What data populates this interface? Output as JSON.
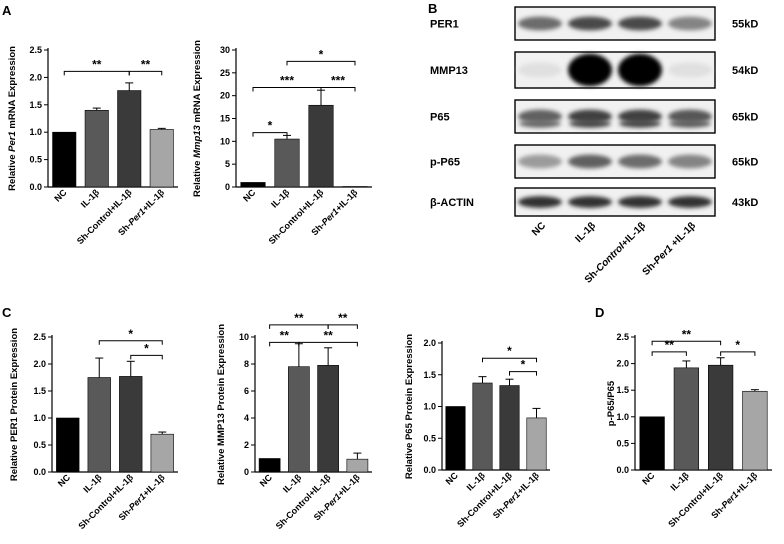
{
  "panel_letters": [
    "A",
    "B",
    "C",
    "D"
  ],
  "western_blot": {
    "rows": [
      {
        "protein": "PER1",
        "size": "55kD"
      },
      {
        "protein": "MMP13",
        "size": "54kD"
      },
      {
        "protein": "P65",
        "size": "65kD"
      },
      {
        "protein": "p-P65",
        "size": "65kD"
      },
      {
        "protein": "β-ACTIN",
        "size": "43kD"
      }
    ],
    "lanes": [
      {
        "pre": "NC",
        "ital": "",
        "post": ""
      },
      {
        "pre": "IL-1β",
        "ital": "",
        "post": ""
      },
      {
        "pre": "Sh-",
        "ital": "Control",
        "post": "+IL-1β"
      },
      {
        "pre": "Sh-",
        "ital": "Per1",
        "post": " +IL-1β"
      }
    ],
    "intensities": [
      [
        0.55,
        0.7,
        0.7,
        0.45
      ],
      [
        0.05,
        1.0,
        1.0,
        0.05
      ],
      [
        0.6,
        0.75,
        0.75,
        0.65
      ],
      [
        0.35,
        0.6,
        0.55,
        0.45
      ],
      [
        0.8,
        0.8,
        0.8,
        0.8
      ]
    ]
  },
  "chart_data": [
    {
      "id": "per1-mrna",
      "type": "bar",
      "panel": "A",
      "ylabel_parts": [
        {
          "t": "Relative ",
          "i": false
        },
        {
          "t": "Per1",
          "i": true
        },
        {
          "t": " mRNA Expression",
          "i": false
        }
      ],
      "categories": [
        [
          {
            "t": "NC",
            "i": false
          }
        ],
        [
          {
            "t": "IL-1β",
            "i": false
          }
        ],
        [
          {
            "t": "Sh-Control+IL-1β",
            "i": false
          }
        ],
        [
          {
            "t": "Sh-",
            "i": false
          },
          {
            "t": "Per1",
            "i": true
          },
          {
            "t": "+IL-1β",
            "i": false
          }
        ]
      ],
      "values": [
        1.0,
        1.4,
        1.76,
        1.05
      ],
      "errors": [
        0.0,
        0.04,
        0.14,
        0.02
      ],
      "colors": [
        "#000000",
        "#595959",
        "#3a3a3a",
        "#a6a6a6"
      ],
      "ylim": [
        0,
        2.5
      ],
      "yticks": [
        "0.0",
        "0.5",
        "1.0",
        "1.5",
        "2.0",
        "2.5"
      ],
      "significance": [
        {
          "from": 0,
          "to": 2,
          "y": 2.11,
          "label": "**"
        },
        {
          "from": 2,
          "to": 3,
          "y": 2.11,
          "label": "**"
        }
      ]
    },
    {
      "id": "mmp13-mrna",
      "type": "bar",
      "panel": "A",
      "ylabel_parts": [
        {
          "t": "Relative ",
          "i": false
        },
        {
          "t": "Mmp13",
          "i": true
        },
        {
          "t": " mRNA Expression",
          "i": false
        }
      ],
      "categories": [
        [
          {
            "t": "NC",
            "i": false
          }
        ],
        [
          {
            "t": "IL-1β",
            "i": false
          }
        ],
        [
          {
            "t": "Sh-Control+IL-1β",
            "i": false
          }
        ],
        [
          {
            "t": "Sh-",
            "i": false
          },
          {
            "t": "Per1",
            "i": true
          },
          {
            "t": "+IL-1β",
            "i": false
          }
        ]
      ],
      "values": [
        1.0,
        10.5,
        17.9,
        0.1
      ],
      "errors": [
        0.0,
        0.8,
        3.3,
        0.0
      ],
      "colors": [
        "#000000",
        "#595959",
        "#3a3a3a",
        "#a6a6a6"
      ],
      "ylim": [
        0,
        30
      ],
      "yticks": [
        "0",
        "5",
        "10",
        "15",
        "20",
        "25",
        "30"
      ],
      "significance": [
        {
          "from": 0,
          "to": 1,
          "y": 11.9,
          "label": "*"
        },
        {
          "from": 0,
          "to": 2,
          "y": 21.8,
          "label": "***"
        },
        {
          "from": 2,
          "to": 3,
          "y": 21.8,
          "label": "***"
        },
        {
          "from": 1,
          "to": 3,
          "y": 27.5,
          "label": "*"
        }
      ]
    },
    {
      "id": "per1-protein",
      "type": "bar",
      "panel": "C",
      "ylabel_parts": [
        {
          "t": "Relative PER1 Protein Expression",
          "i": false
        }
      ],
      "categories": [
        [
          {
            "t": "NC",
            "i": false
          }
        ],
        [
          {
            "t": "IL-1β",
            "i": false
          }
        ],
        [
          {
            "t": "Sh-Control+IL-1β",
            "i": false
          }
        ],
        [
          {
            "t": "Sh-",
            "i": false
          },
          {
            "t": "Per1",
            "i": true
          },
          {
            "t": "+IL-1β",
            "i": false
          }
        ]
      ],
      "values": [
        1.0,
        1.75,
        1.77,
        0.7
      ],
      "errors": [
        0.0,
        0.36,
        0.28,
        0.04
      ],
      "colors": [
        "#000000",
        "#595959",
        "#3a3a3a",
        "#a6a6a6"
      ],
      "ylim": [
        0,
        2.5
      ],
      "yticks": [
        "0.0",
        "0.5",
        "1.0",
        "1.5",
        "2.0",
        "2.5"
      ],
      "significance": [
        {
          "from": 2,
          "to": 3,
          "y": 2.16,
          "label": "*"
        },
        {
          "from": 1,
          "to": 3,
          "y": 2.43,
          "label": "*"
        }
      ]
    },
    {
      "id": "mmp13-protein",
      "type": "bar",
      "panel": "C",
      "ylabel_parts": [
        {
          "t": "Relative  MMP13 Protein Expression",
          "i": false
        }
      ],
      "categories": [
        [
          {
            "t": "NC",
            "i": false
          }
        ],
        [
          {
            "t": "IL-1β",
            "i": false
          }
        ],
        [
          {
            "t": "Sh-Control+IL-1β",
            "i": false
          }
        ],
        [
          {
            "t": "Sh-",
            "i": false
          },
          {
            "t": "Per1",
            "i": true
          },
          {
            "t": "+IL-1β",
            "i": false
          }
        ]
      ],
      "values": [
        1.0,
        7.8,
        7.9,
        0.95
      ],
      "errors": [
        0.0,
        1.7,
        1.3,
        0.45
      ],
      "colors": [
        "#000000",
        "#595959",
        "#3a3a3a",
        "#a6a6a6"
      ],
      "ylim": [
        0,
        10
      ],
      "yticks": [
        "0",
        "2",
        "4",
        "6",
        "8",
        "10"
      ],
      "significance": [
        {
          "from": 0,
          "to": 1,
          "y": 9.6,
          "label": "**"
        },
        {
          "from": 1,
          "to": 3,
          "y": 9.6,
          "label": "**"
        },
        {
          "from": 0,
          "to": 2,
          "y": 10.9,
          "label": "**"
        },
        {
          "from": 2,
          "to": 3,
          "y": 10.9,
          "label": "**"
        }
      ]
    },
    {
      "id": "p65-protein",
      "type": "bar",
      "panel": "C",
      "ylabel_parts": [
        {
          "t": "Relative  P65 Protein Expression",
          "i": false
        }
      ],
      "categories": [
        [
          {
            "t": "NC",
            "i": false
          }
        ],
        [
          {
            "t": "IL-1β",
            "i": false
          }
        ],
        [
          {
            "t": "Sh-Control+IL-1β",
            "i": false
          }
        ],
        [
          {
            "t": "Sh-",
            "i": false
          },
          {
            "t": "Per1",
            "i": true
          },
          {
            "t": "+IL-1β",
            "i": false
          }
        ]
      ],
      "values": [
        1.0,
        1.37,
        1.33,
        0.82
      ],
      "errors": [
        0.0,
        0.1,
        0.1,
        0.15
      ],
      "colors": [
        "#000000",
        "#595959",
        "#3a3a3a",
        "#a6a6a6"
      ],
      "ylim": [
        0,
        2.0
      ],
      "yticks": [
        "0.0",
        "0.5",
        "1.0",
        "1.5",
        "2.0"
      ],
      "significance": [
        {
          "from": 2,
          "to": 3,
          "y": 1.55,
          "label": "*"
        },
        {
          "from": 1,
          "to": 3,
          "y": 1.76,
          "label": "*"
        }
      ]
    },
    {
      "id": "p-p65-ratio",
      "type": "bar",
      "panel": "D",
      "ylabel_parts": [
        {
          "t": "p-P65/P65",
          "i": false
        }
      ],
      "categories": [
        [
          {
            "t": "NC",
            "i": false
          }
        ],
        [
          {
            "t": "IL-1β",
            "i": false
          }
        ],
        [
          {
            "t": "Sh-Control+IL-1β",
            "i": false
          }
        ],
        [
          {
            "t": "Sh-",
            "i": false
          },
          {
            "t": "Per1",
            "i": true
          },
          {
            "t": "+IL-1β",
            "i": false
          }
        ]
      ],
      "values": [
        1.0,
        1.92,
        1.97,
        1.48
      ],
      "errors": [
        0.0,
        0.13,
        0.14,
        0.03
      ],
      "colors": [
        "#000000",
        "#595959",
        "#3a3a3a",
        "#a6a6a6"
      ],
      "ylim": [
        0,
        2.5
      ],
      "yticks": [
        "0.0",
        "0.5",
        "1.0",
        "1.5",
        "2.0",
        "2.5"
      ],
      "significance": [
        {
          "from": 0,
          "to": 1,
          "y": 2.22,
          "label": "**"
        },
        {
          "from": 2,
          "to": 3,
          "y": 2.22,
          "label": "*"
        },
        {
          "from": 0,
          "to": 2,
          "y": 2.42,
          "label": "**"
        }
      ]
    }
  ]
}
